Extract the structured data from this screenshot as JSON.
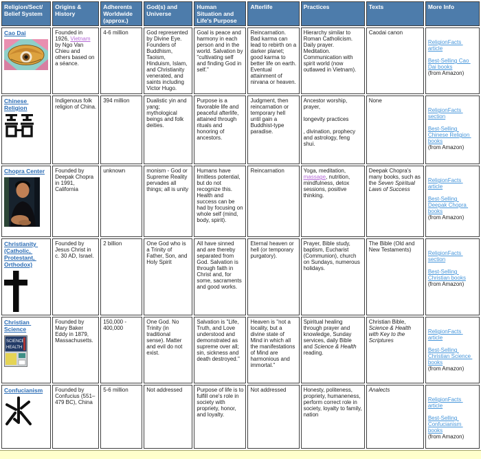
{
  "table": {
    "headers": [
      "Religion/Sect/\nBelief System",
      "Origins &\nHistory",
      "Adherents\nWorldwide\n(approx.)",
      "God(s) and\nUniverse",
      "Human\nSituation and\nLife's Purpose",
      "Afterlife",
      "Practices",
      "Texts",
      "More Info"
    ],
    "rows": [
      {
        "name": "Cao Dai",
        "icon": "divine-eye",
        "origins": [
          {
            "text": "Founded in 1926, "
          },
          {
            "text": "Vietnam",
            "style": "visited-link"
          },
          {
            "text": " by Ngo Van Chieu and others based on a séance."
          }
        ],
        "adherents": [
          {
            "text": "4-6 million"
          }
        ],
        "gods": [
          {
            "text": "God represented by Divine Eye. Founders of Buddhism, Taoism, Hinduism, Islam, and Christianity venerated, and saints including Victor Hugo."
          }
        ],
        "human_situation": [
          {
            "text": "Goal is peace and harmony in each person and in the world. Salvation by \"cultivating self and finding God in self.\""
          }
        ],
        "afterlife": [
          {
            "text": "Reincarnation. Bad karma can lead to rebirth on a darker planet; good karma to better life on earth. Eventual attainment of nirvana or heaven."
          }
        ],
        "practices": [
          {
            "text": "Hierarchy similar to Roman Catholicism. Daily prayer. Meditation. Communication with spirit world (now outlawed in Vietnam)."
          }
        ],
        "texts": [
          {
            "text": "Caodai canon"
          }
        ],
        "more_info": {
          "link1": "ReligionFacts article",
          "link2": "Best-Selling Cao Dai books",
          "note": "(from Amazon)"
        }
      },
      {
        "name": "Chinese Religion",
        "icon": "double-happiness",
        "origins": [
          {
            "text": "Indigenous folk religion of China."
          }
        ],
        "adherents": [
          {
            "text": "394 million"
          }
        ],
        "gods": [
          {
            "text": "Dualistic yin and yang; mythological beings and folk deities."
          }
        ],
        "human_situation": [
          {
            "text": "Purpose is a favorable life and peaceful afterlife, attained through rituals and honoring of ancestors."
          }
        ],
        "afterlife": [
          {
            "text": "Judgment, then reincarnation or temporary hell until gain a Buddhist-type paradise."
          }
        ],
        "practices": [
          {
            "text": "Ancestor worship, prayer,\n\nlongevity practices\n\n, divination, prophecy and astrology, feng shui."
          }
        ],
        "texts": [
          {
            "text": "None"
          }
        ],
        "more_info": {
          "link1": "ReligionFacts section",
          "link2": "Best-Selling Chinese Religion books",
          "note": "(from Amazon)"
        }
      },
      {
        "name": "Chopra Center",
        "icon": "chopra-photo",
        "origins": [
          {
            "text": "Founded by Deepak Chopra in 1991, California"
          }
        ],
        "adherents": [
          {
            "text": "unknown"
          }
        ],
        "gods": [
          {
            "text": "monism - God or Supreme Reality pervades all things; all is unity"
          }
        ],
        "human_situation": [
          {
            "text": "Humans have limitless potential, but do not recognize this. Health and success can be had by focusing on whole self (mind, body, spirit)."
          }
        ],
        "afterlife": [
          {
            "text": "Reincarnation"
          }
        ],
        "practices": [
          {
            "text": "Yoga, meditation, "
          },
          {
            "text": "massage",
            "style": "visited-link"
          },
          {
            "text": ", nutrition, mindfulness, detox sessions, positive thinking."
          }
        ],
        "texts": [
          {
            "text": "Deepak Chopra's many books, such as the "
          },
          {
            "text": "Seven Spiritual Laws of Success",
            "style": "italic"
          }
        ],
        "more_info": {
          "link1": "ReligionFacts article",
          "link2": "Best-Selling Deepak Chopra books",
          "note": "(from Amazon)"
        }
      },
      {
        "name": "Christianity (Catholic, Protestant, Orthodox)",
        "icon": "latin-cross",
        "origins": [
          {
            "text": "Founded by Jesus Christ in c. 30 AD, Israel."
          }
        ],
        "adherents": [
          {
            "text": "2 billion"
          }
        ],
        "gods": [
          {
            "text": "One God who is a Trinity of Father, Son, and Holy Spirit"
          }
        ],
        "human_situation": [
          {
            "text": "All have sinned and are thereby separated from God. Salvation is through faith in Christ and, for some, sacraments and good works."
          }
        ],
        "afterlife": [
          {
            "text": "Eternal heaven or hell (or temporary purgatory)."
          }
        ],
        "practices": [
          {
            "text": "Prayer, Bible study, baptism, Eucharist (Communion), church on Sundays, numerous holidays."
          }
        ],
        "texts": [
          {
            "text": "The Bible (Old and New Testaments)"
          }
        ],
        "more_info": {
          "link1": "ReligionFacts section",
          "link2": "Best-Selling Christian books",
          "note": "(from Amazon)"
        }
      },
      {
        "name": "Christian Science",
        "icon": "science-health-book",
        "origins": [
          {
            "text": "Founded by Mary Baker Eddy in 1879, Massachusetts."
          }
        ],
        "adherents": [
          {
            "text": "150,000 - 400,000"
          }
        ],
        "gods": [
          {
            "text": "One God. No Trinity (in traditional sense). Matter and evil do not exist."
          }
        ],
        "human_situation": [
          {
            "text": "Salvation is \"Life, Truth, and Love understood and demonstrated as supreme over all; sin, sickness and death destroyed.\""
          }
        ],
        "afterlife": [
          {
            "text": "Heaven is \"not a locality, but a divine state of Mind in which all the manifestations of Mind are harmonious and immortal.\""
          }
        ],
        "practices": [
          {
            "text": "Spiritual healing through prayer and knowledge, Sunday services, daily Bible and "
          },
          {
            "text": "Science & Health",
            "style": "italic"
          },
          {
            "text": " reading."
          }
        ],
        "texts": [
          {
            "text": "Christian Bible, "
          },
          {
            "text": "Science & Health with Key to the Scriptures",
            "style": "italic"
          }
        ],
        "more_info": {
          "link1": "ReligionFacts article",
          "link2": "Best-Selling Christian Science books",
          "note": "(from Amazon)"
        }
      },
      {
        "name": "Confucianism",
        "icon": "water-character",
        "origins": [
          {
            "text": "Founded by Confucius (551–479 BC), China"
          }
        ],
        "adherents": [
          {
            "text": "5-6 million"
          }
        ],
        "gods": [
          {
            "text": "Not addressed"
          }
        ],
        "human_situation": [
          {
            "text": "Purpose of life is to fulfill one's role in society with propriety, honor, and loyalty."
          }
        ],
        "afterlife": [
          {
            "text": "Not addressed"
          }
        ],
        "practices": [
          {
            "text": "Honesty, politeness, propriety, humaneness, perform correct role in society, loyalty to family, nation"
          }
        ],
        "texts": [
          {
            "text": "Analects",
            "style": "italic"
          }
        ],
        "more_info": {
          "link1": "ReligionFacts article",
          "link2": "Best-Selling Confucianism books",
          "note": "(from Amazon)"
        }
      }
    ]
  }
}
